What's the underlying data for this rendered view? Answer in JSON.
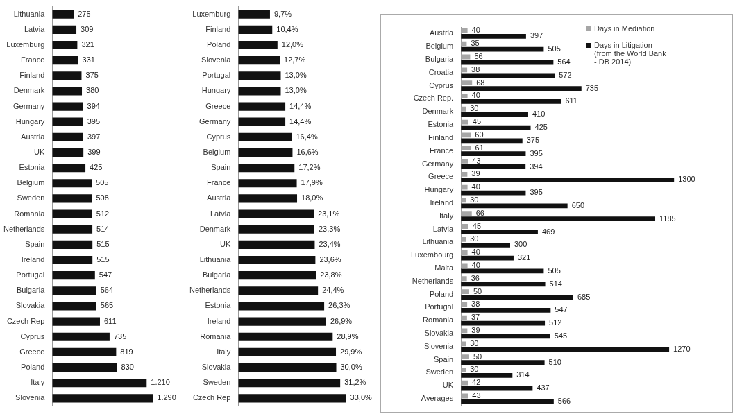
{
  "chart_data": [
    {
      "type": "bar",
      "orientation": "horizontal",
      "color": "#111111",
      "categories": [
        "Lithuania",
        "Latvia",
        "Luxemburg",
        "France",
        "Finland",
        "Denmark",
        "Germany",
        "Hungary",
        "Austria",
        "UK",
        "Estonia",
        "Belgium",
        "Sweden",
        "Romania",
        "Netherlands",
        "Spain",
        "Ireland",
        "Portugal",
        "Bulgaria",
        "Slovakia",
        "Czech Rep",
        "Cyprus",
        "Greece",
        "Poland",
        "Italy",
        "Slovenia"
      ],
      "values": [
        275,
        309,
        321,
        331,
        375,
        380,
        394,
        395,
        397,
        399,
        425,
        505,
        508,
        512,
        514,
        515,
        515,
        547,
        564,
        565,
        611,
        735,
        819,
        830,
        1210,
        1290
      ],
      "value_labels": [
        "275",
        "309",
        "321",
        "331",
        "375",
        "380",
        "394",
        "395",
        "397",
        "399",
        "425",
        "505",
        "508",
        "512",
        "514",
        "515",
        "515",
        "547",
        "564",
        "565",
        "611",
        "735",
        "819",
        "830",
        "1.210",
        "1.290"
      ]
    },
    {
      "type": "bar",
      "orientation": "horizontal",
      "color": "#111111",
      "categories": [
        "Luxemburg",
        "Finland",
        "Poland",
        "Slovenia",
        "Portugal",
        "Hungary",
        "Greece",
        "Germany",
        "Cyprus",
        "Belgium",
        "Spain",
        "France",
        "Austria",
        "Latvia",
        "Denmark",
        "UK",
        "Lithuania",
        "Bulgaria",
        "Netherlands",
        "Estonia",
        "Ireland",
        "Romania",
        "Italy",
        "Slovakia",
        "Sweden",
        "Czech Rep"
      ],
      "values": [
        9.7,
        10.4,
        12.0,
        12.7,
        13.0,
        13.0,
        14.4,
        14.4,
        16.4,
        16.6,
        17.2,
        17.9,
        18.0,
        23.1,
        23.3,
        23.4,
        23.6,
        23.8,
        24.4,
        26.3,
        26.9,
        28.9,
        29.9,
        30.0,
        31.2,
        33.0
      ],
      "value_labels": [
        "9,7%",
        "10,4%",
        "12,0%",
        "12,7%",
        "13,0%",
        "13,0%",
        "14,4%",
        "14,4%",
        "16,4%",
        "16,6%",
        "17,2%",
        "17,9%",
        "18,0%",
        "23,1%",
        "23,3%",
        "23,4%",
        "23,6%",
        "23,8%",
        "24,4%",
        "26,3%",
        "26,9%",
        "28,9%",
        "29,9%",
        "30,0%",
        "31,2%",
        "33,0%"
      ]
    },
    {
      "type": "bar",
      "orientation": "horizontal",
      "data_labels": true,
      "legend": "top right",
      "categories": [
        "Austria",
        "Belgium",
        "Bulgaria",
        "Croatia",
        "Cyprus",
        "Czech Rep.",
        "Denmark",
        "Estonia",
        "Finland",
        "France",
        "Germany",
        "Greece",
        "Hungary",
        "Ireland",
        "Italy",
        "Latvia",
        "Lithuania",
        "Luxembourg",
        "Malta",
        "Netherlands",
        "Poland",
        "Portugal",
        "Romania",
        "Slovakia",
        "Slovenia",
        "Spain",
        "Sweden",
        "UK",
        "Averages"
      ],
      "series": [
        {
          "name": "Days in Mediation",
          "color": "#a6a6a6",
          "values": [
            40,
            35,
            56,
            38,
            68,
            40,
            30,
            45,
            60,
            61,
            43,
            39,
            40,
            30,
            66,
            45,
            30,
            40,
            40,
            36,
            50,
            38,
            37,
            39,
            30,
            50,
            30,
            42,
            43
          ]
        },
        {
          "name": "Days in Litigation (from the World Bank - DB 2014)",
          "color": "#111111",
          "values": [
            397,
            505,
            564,
            572,
            735,
            611,
            410,
            425,
            375,
            395,
            394,
            1300,
            395,
            650,
            1185,
            469,
            300,
            321,
            505,
            514,
            685,
            547,
            512,
            545,
            1270,
            510,
            314,
            437,
            566
          ]
        }
      ]
    }
  ]
}
